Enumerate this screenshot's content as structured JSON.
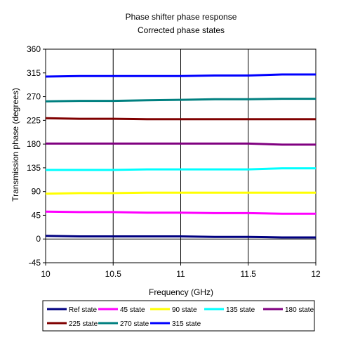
{
  "chart_data": {
    "type": "line",
    "title": "Phase shifter phase response",
    "subtitle": "Corrected phase states",
    "xlabel": "Frequency (GHz)",
    "ylabel": "Transmission phase (degrees)",
    "xlim": [
      10,
      12
    ],
    "ylim": [
      -45,
      360
    ],
    "x_ticks": [
      10,
      10.5,
      11,
      11.5,
      12
    ],
    "x_tick_labels": [
      "10",
      "10.5",
      "11",
      "11.5",
      "12"
    ],
    "y_ticks": [
      -45,
      0,
      45,
      90,
      135,
      180,
      225,
      270,
      315,
      360
    ],
    "y_tick_labels": [
      "-45",
      "0",
      "45",
      "90",
      "135",
      "180",
      "225",
      "270",
      "315",
      "360"
    ],
    "grid": "vertical",
    "legend_position": "bottom",
    "x": [
      10,
      10.25,
      10.5,
      10.75,
      11,
      11.25,
      11.5,
      11.75,
      12
    ],
    "series": [
      {
        "name": "Ref state",
        "color": "#000080",
        "values": [
          6,
          5,
          5,
          5,
          5,
          4,
          4,
          3,
          3
        ]
      },
      {
        "name": "45 state",
        "color": "#FF00FF",
        "values": [
          52,
          51,
          51,
          50,
          50,
          49,
          49,
          48,
          48
        ]
      },
      {
        "name": "90 state",
        "color": "#FFFF00",
        "values": [
          86,
          87,
          87,
          88,
          88,
          88,
          88,
          88,
          88
        ]
      },
      {
        "name": "135 state",
        "color": "#00FFFF",
        "values": [
          131,
          131,
          131,
          132,
          132,
          132,
          132,
          134,
          134
        ]
      },
      {
        "name": "180 state",
        "color": "#800080",
        "values": [
          181,
          181,
          181,
          181,
          181,
          181,
          181,
          179,
          179
        ]
      },
      {
        "name": "225 state",
        "color": "#800000",
        "values": [
          229,
          228,
          228,
          227,
          227,
          227,
          227,
          227,
          227
        ]
      },
      {
        "name": "270 state",
        "color": "#008080",
        "values": [
          261,
          262,
          262,
          263,
          264,
          265,
          265,
          266,
          266
        ]
      },
      {
        "name": "315 state",
        "color": "#0000FF",
        "values": [
          308,
          309,
          309,
          309,
          309,
          310,
          310,
          312,
          312
        ]
      }
    ],
    "colors": {
      "plot_background": "#FFFFFF",
      "gridline": "#000000",
      "zero_line": "#000000"
    }
  }
}
